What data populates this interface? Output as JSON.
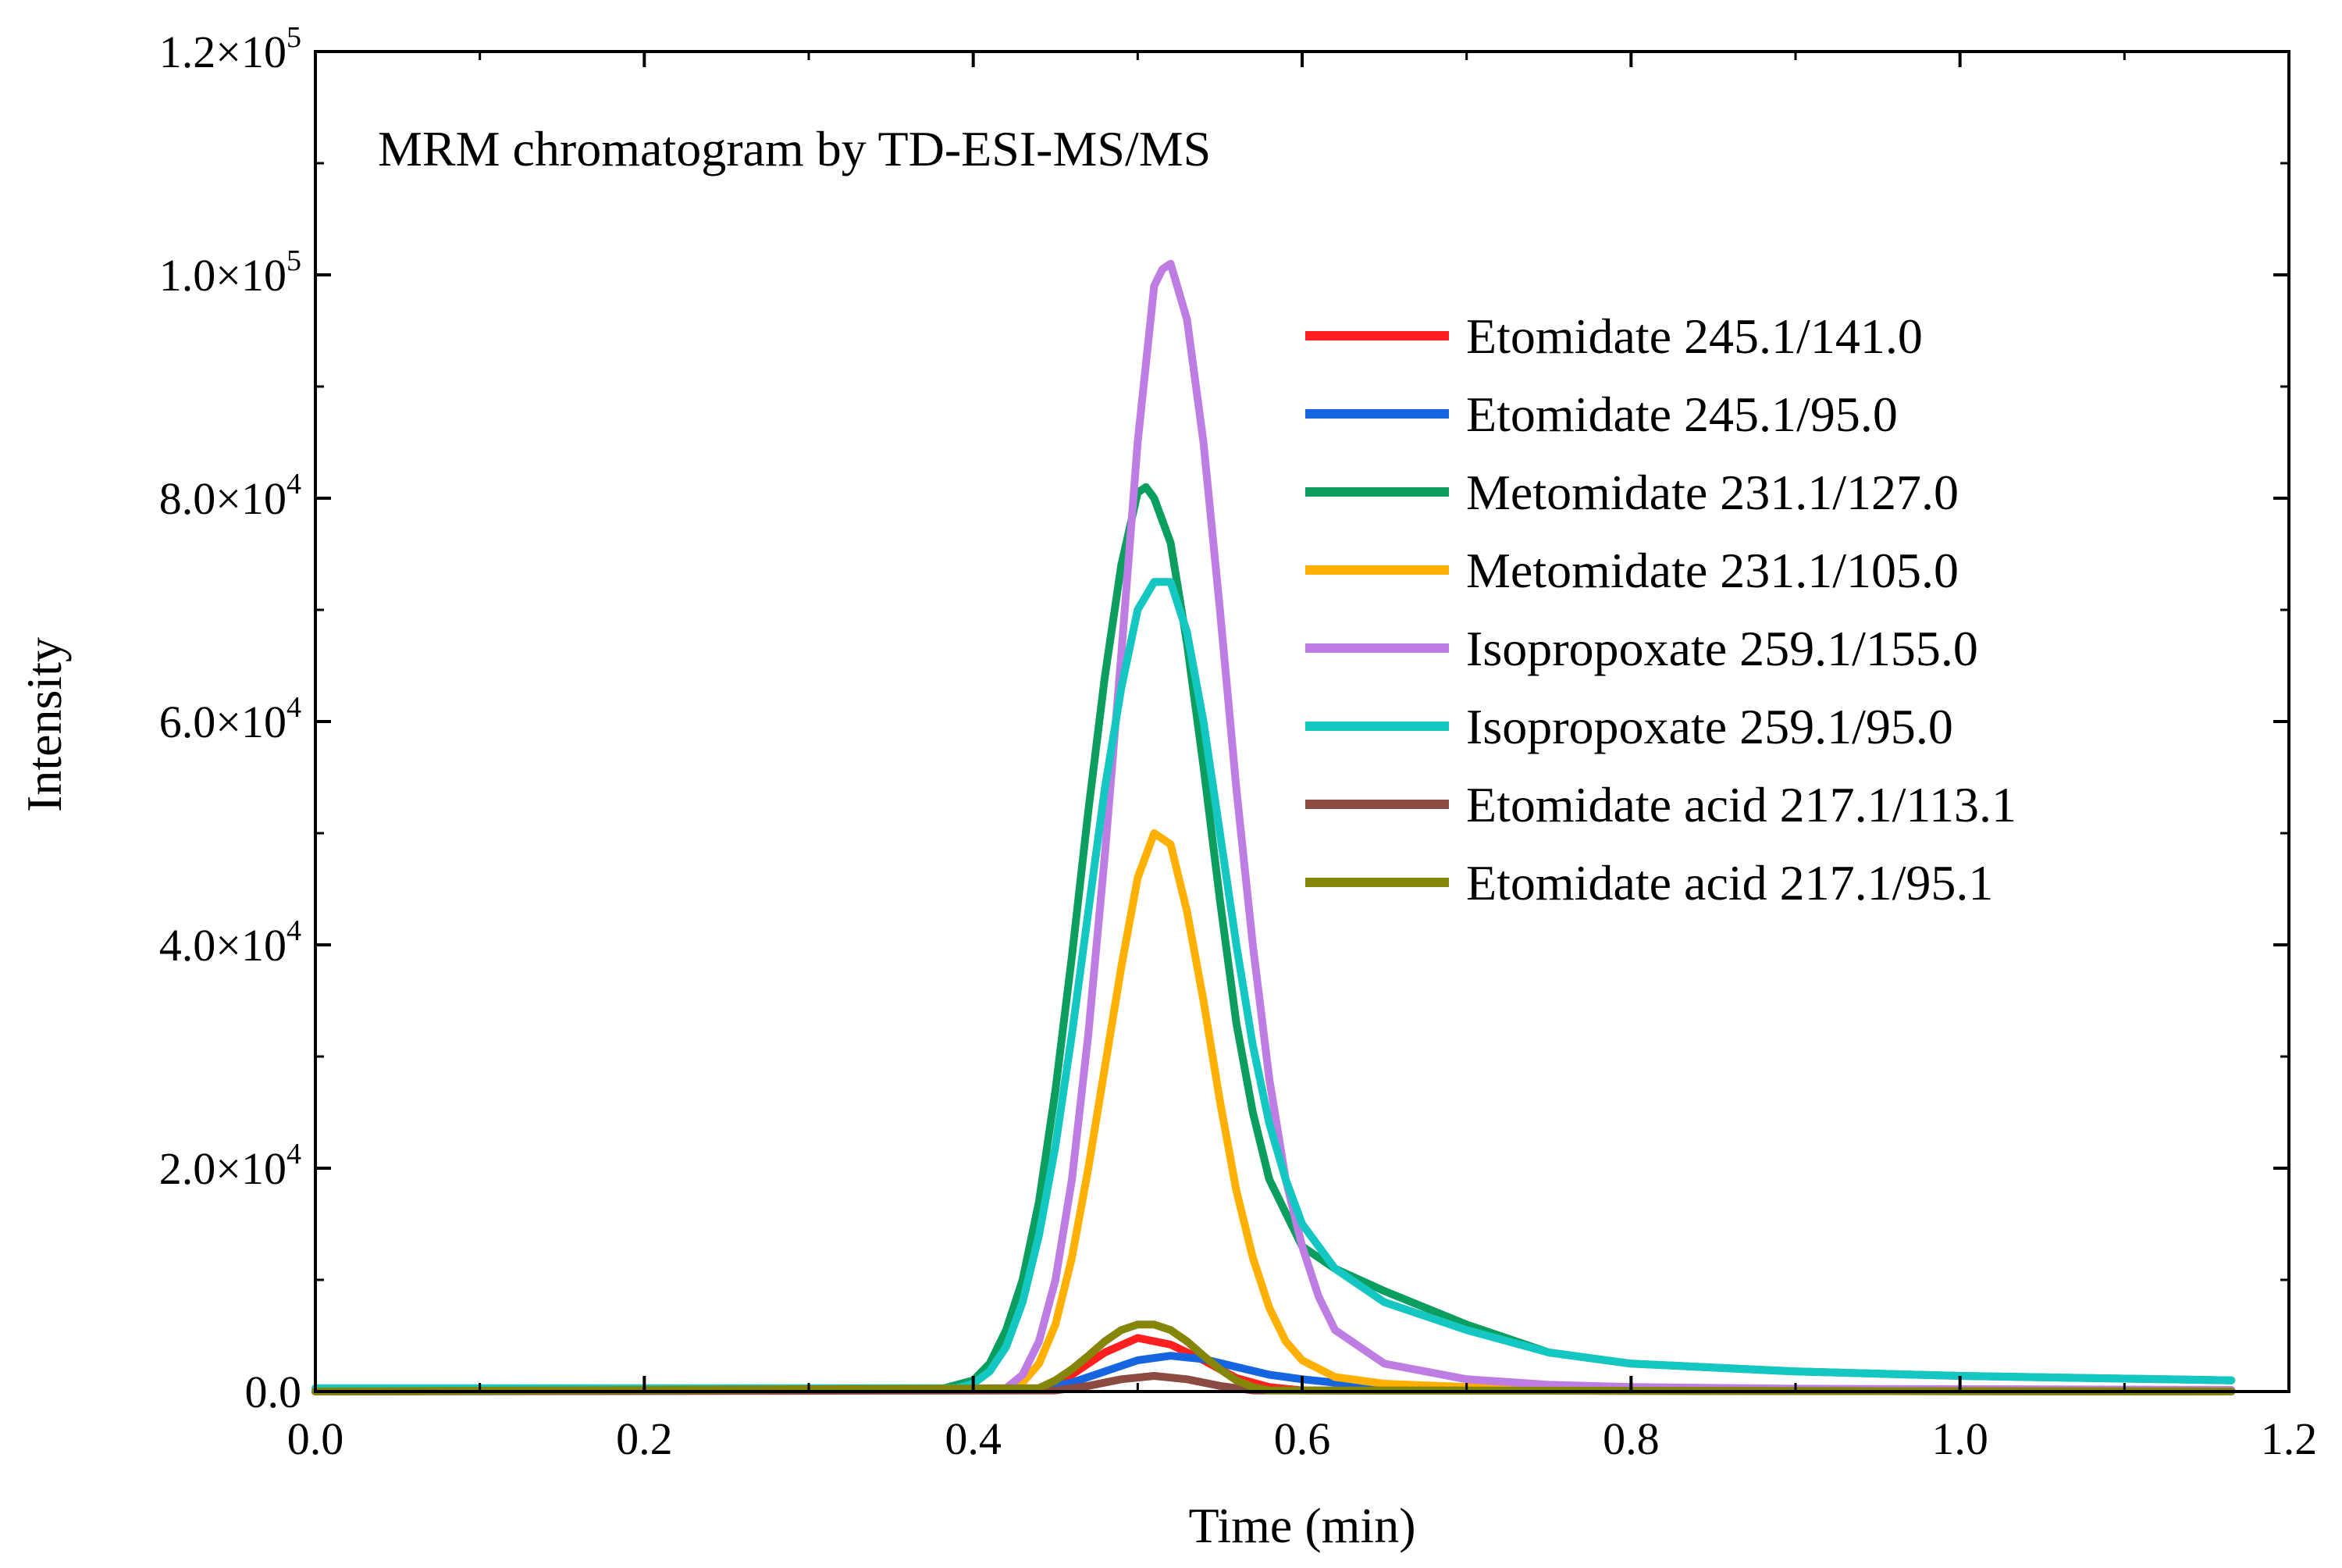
{
  "chart_data": {
    "type": "line",
    "title": "MRM chromatogram by TD-ESI-MS/MS",
    "xlabel": "Time (min)",
    "ylabel": "Intensity",
    "xlim": [
      0,
      1.2
    ],
    "ylim": [
      0,
      120000
    ],
    "xticks": [
      0.0,
      0.2,
      0.4,
      0.6,
      0.8,
      1.0,
      1.2
    ],
    "xtick_labels": [
      "0.0",
      "0.2",
      "0.4",
      "0.6",
      "0.8",
      "1.0",
      "1.2"
    ],
    "yticks": [
      0,
      20000,
      40000,
      60000,
      80000,
      100000,
      120000
    ],
    "ytick_labels": [
      {
        "base": "0.0",
        "exp": ""
      },
      {
        "base": "2.0×10",
        "exp": "4"
      },
      {
        "base": "4.0×10",
        "exp": "4"
      },
      {
        "base": "6.0×10",
        "exp": "4"
      },
      {
        "base": "8.0×10",
        "exp": "4"
      },
      {
        "base": "1.0×10",
        "exp": "5"
      },
      {
        "base": "1.2×10",
        "exp": "5"
      }
    ],
    "grid": false,
    "legend_position": "right",
    "series": [
      {
        "name": "Etomidate 245.1/141.0",
        "color": "#ff1f1f",
        "x": [
          0,
          0.44,
          0.46,
          0.48,
          0.5,
          0.52,
          0.54,
          0.56,
          0.58,
          0.6,
          1.165
        ],
        "y": [
          0,
          300,
          1500,
          3500,
          4800,
          4200,
          2800,
          1200,
          400,
          100,
          0
        ]
      },
      {
        "name": "Etomidate 245.1/95.0",
        "color": "#1565e0",
        "x": [
          0,
          0.44,
          0.46,
          0.48,
          0.5,
          0.52,
          0.54,
          0.56,
          0.58,
          0.6,
          0.62,
          0.65,
          0.7,
          0.8,
          1.165
        ],
        "y": [
          0,
          200,
          800,
          1800,
          2800,
          3200,
          2900,
          2200,
          1500,
          1100,
          800,
          500,
          300,
          150,
          100
        ]
      },
      {
        "name": "Metomidate 231.1/127.0",
        "color": "#0c9e5e",
        "x": [
          0,
          0.38,
          0.4,
          0.41,
          0.42,
          0.43,
          0.44,
          0.45,
          0.46,
          0.47,
          0.48,
          0.49,
          0.5,
          0.505,
          0.51,
          0.52,
          0.53,
          0.54,
          0.55,
          0.56,
          0.57,
          0.58,
          0.6,
          0.62,
          0.65,
          0.7,
          0.75,
          0.8,
          0.9,
          1.0,
          1.165
        ],
        "y": [
          0,
          200,
          1000,
          2500,
          5500,
          10000,
          17000,
          27000,
          39000,
          52000,
          64000,
          74000,
          80500,
          81000,
          80000,
          76000,
          67000,
          56000,
          44000,
          33000,
          25000,
          19000,
          13000,
          11000,
          9000,
          6000,
          3500,
          2500,
          1800,
          1400,
          1000
        ]
      },
      {
        "name": "Metomidate 231.1/105.0",
        "color": "#ffb000",
        "x": [
          0,
          0.42,
          0.43,
          0.44,
          0.45,
          0.46,
          0.47,
          0.48,
          0.49,
          0.5,
          0.51,
          0.52,
          0.53,
          0.54,
          0.55,
          0.56,
          0.57,
          0.58,
          0.59,
          0.6,
          0.62,
          0.65,
          0.7,
          0.8,
          1.165
        ],
        "y": [
          0,
          200,
          800,
          2500,
          6000,
          12000,
          20000,
          29000,
          38000,
          46000,
          50000,
          49000,
          43000,
          35000,
          26000,
          18000,
          12000,
          7500,
          4500,
          2800,
          1300,
          700,
          400,
          200,
          100
        ]
      },
      {
        "name": "Isopropoxate 259.1/155.0",
        "color": "#be7de2",
        "x": [
          0,
          0.42,
          0.43,
          0.44,
          0.45,
          0.46,
          0.47,
          0.48,
          0.49,
          0.5,
          0.51,
          0.515,
          0.52,
          0.53,
          0.54,
          0.55,
          0.56,
          0.57,
          0.58,
          0.59,
          0.6,
          0.61,
          0.62,
          0.65,
          0.7,
          0.75,
          0.8,
          0.9,
          1.165
        ],
        "y": [
          0,
          300,
          1500,
          4500,
          10000,
          19000,
          32000,
          48000,
          66000,
          85000,
          99000,
          100500,
          101000,
          96000,
          85000,
          70000,
          54000,
          40000,
          28000,
          19000,
          13000,
          8500,
          5500,
          2500,
          1100,
          600,
          400,
          250,
          150
        ]
      },
      {
        "name": "Isopropoxate 259.1/95.0",
        "color": "#14c7c2",
        "x": [
          0,
          0.39,
          0.4,
          0.41,
          0.42,
          0.43,
          0.44,
          0.45,
          0.46,
          0.47,
          0.48,
          0.49,
          0.5,
          0.51,
          0.52,
          0.53,
          0.54,
          0.55,
          0.56,
          0.57,
          0.58,
          0.59,
          0.6,
          0.62,
          0.65,
          0.7,
          0.75,
          0.8,
          0.9,
          1.0,
          1.165
        ],
        "y": [
          300,
          300,
          700,
          1800,
          4000,
          8000,
          14000,
          22000,
          32000,
          43000,
          54000,
          63000,
          70000,
          72500,
          72500,
          68000,
          60000,
          50000,
          40000,
          31000,
          24000,
          19000,
          15000,
          11000,
          8000,
          5500,
          3500,
          2500,
          1800,
          1400,
          1000
        ]
      },
      {
        "name": "Etomidate acid 217.1/113.1",
        "color": "#8b4a42",
        "x": [
          0,
          0.45,
          0.47,
          0.49,
          0.51,
          0.53,
          0.55,
          0.57,
          1.165
        ],
        "y": [
          0,
          100,
          500,
          1100,
          1400,
          1100,
          500,
          100,
          0
        ]
      },
      {
        "name": "Etomidate acid 217.1/95.1",
        "color": "#85850a",
        "x": [
          0,
          0.44,
          0.45,
          0.46,
          0.47,
          0.48,
          0.49,
          0.5,
          0.51,
          0.52,
          0.53,
          0.54,
          0.55,
          0.56,
          0.57,
          0.58,
          1.165
        ],
        "y": [
          0,
          300,
          1000,
          2000,
          3200,
          4500,
          5500,
          6000,
          6000,
          5500,
          4500,
          3200,
          2000,
          1000,
          400,
          100,
          0
        ]
      }
    ]
  }
}
